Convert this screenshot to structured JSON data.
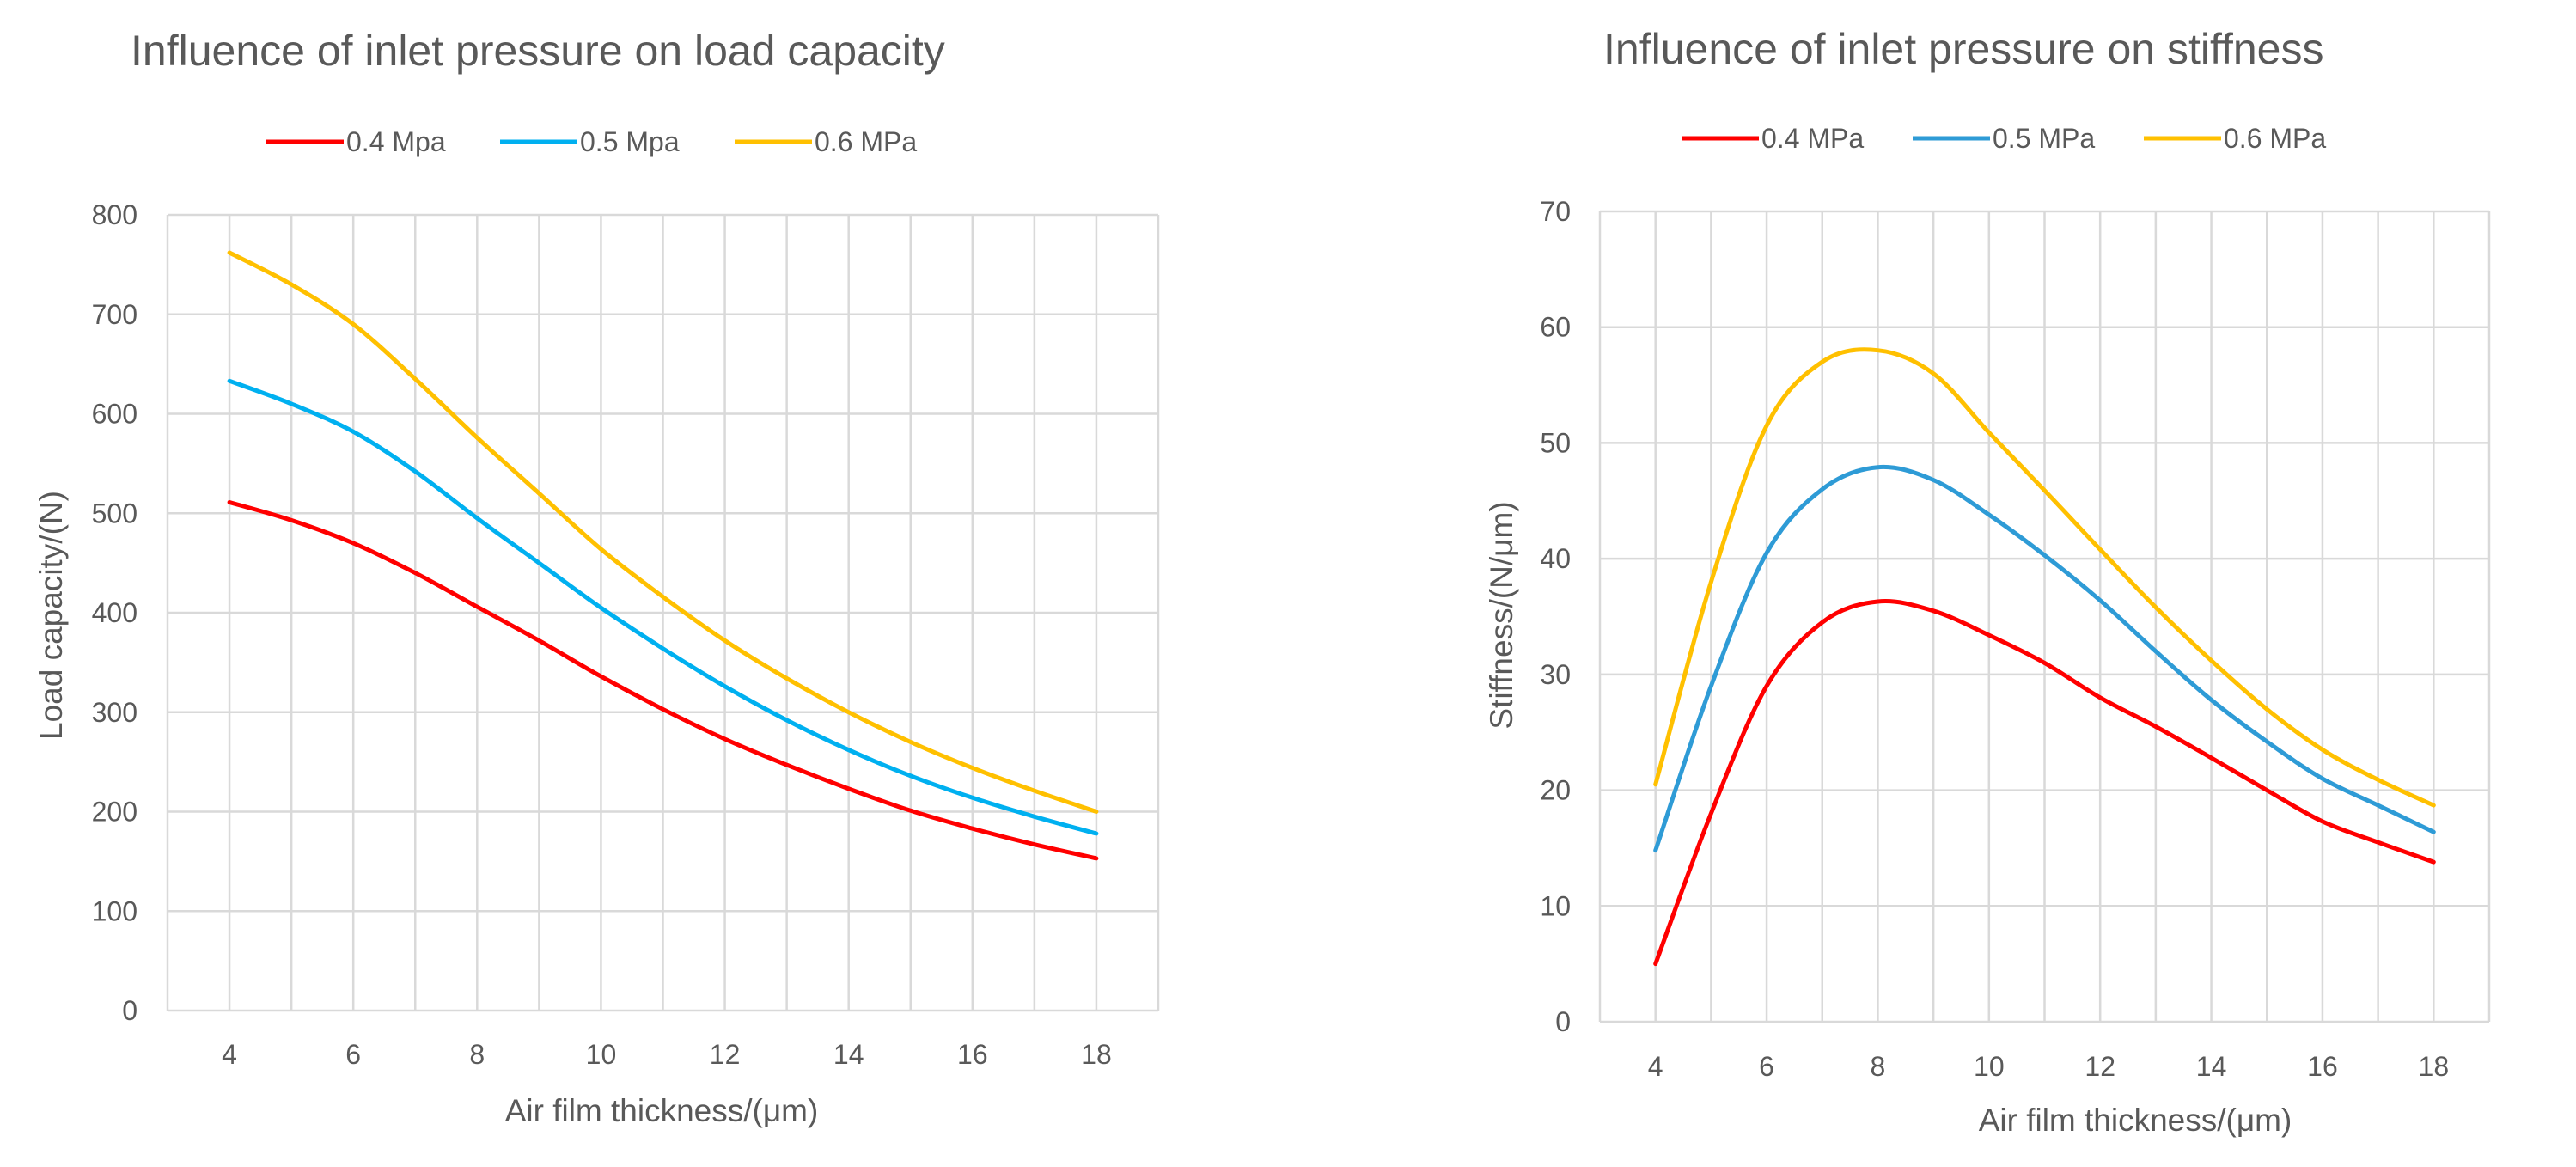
{
  "chart_data": [
    {
      "type": "line",
      "title": "Influence of inlet pressure on load capacity",
      "xlabel": "Air film thickness/(μm)",
      "ylabel": "Load capacity/(N)",
      "x": [
        4,
        5,
        6,
        7,
        8,
        9,
        10,
        11,
        12,
        13,
        14,
        15,
        16,
        17,
        18
      ],
      "xlim": [
        3,
        19
      ],
      "ylim": [
        0,
        800
      ],
      "xticks": [
        "4",
        "6",
        "8",
        "10",
        "12",
        "14",
        "16",
        "18"
      ],
      "yticks": [
        "0",
        "100",
        "200",
        "300",
        "400",
        "500",
        "600",
        "700",
        "800"
      ],
      "legend_position": "top",
      "series": [
        {
          "name": "0.4 Mpa",
          "color": "#ff0000",
          "values": [
            511,
            493,
            470,
            440,
            406,
            372,
            336,
            303,
            273,
            247,
            223,
            201,
            183,
            167,
            153
          ]
        },
        {
          "name": "0.5 Mpa",
          "color": "#00b0f0",
          "values": [
            633,
            610,
            582,
            542,
            495,
            450,
            405,
            364,
            326,
            292,
            262,
            236,
            214,
            195,
            178
          ]
        },
        {
          "name": "0.6 MPa",
          "color": "#ffc000",
          "values": [
            762,
            730,
            690,
            635,
            576,
            520,
            464,
            416,
            372,
            334,
            300,
            270,
            244,
            221,
            200
          ]
        }
      ]
    },
    {
      "type": "line",
      "title": "Influence of inlet pressure on stiffness",
      "xlabel": "Air film thickness/(μm)",
      "ylabel": "Stiffness/(N/μm)",
      "x": [
        4,
        5,
        6,
        7,
        8,
        9,
        10,
        11,
        12,
        13,
        14,
        15,
        16,
        17,
        18
      ],
      "xlim": [
        3,
        19
      ],
      "ylim": [
        0,
        70
      ],
      "xticks": [
        "4",
        "6",
        "8",
        "10",
        "12",
        "14",
        "16",
        "18"
      ],
      "yticks": [
        "0",
        "10",
        "20",
        "30",
        "40",
        "50",
        "60",
        "70"
      ],
      "legend_position": "top",
      "series": [
        {
          "name": "0.4 MPa",
          "color": "#ff0000",
          "values": [
            5,
            18,
            29,
            34.5,
            36.3,
            35.5,
            33.4,
            31,
            28,
            25.5,
            22.8,
            20,
            17.3,
            15.5,
            13.8
          ]
        },
        {
          "name": "0.5 MPa",
          "color": "#2e9bd6",
          "values": [
            14.8,
            29,
            40.5,
            46,
            47.9,
            46.8,
            43.8,
            40.3,
            36.4,
            32,
            27.8,
            24.2,
            21,
            18.7,
            16.4
          ]
        },
        {
          "name": "0.6 MPa",
          "color": "#ffc000",
          "values": [
            20.5,
            38,
            51.5,
            57,
            58,
            56,
            50.9,
            45.9,
            40.8,
            35.8,
            31.2,
            27,
            23.5,
            20.9,
            18.7
          ]
        }
      ]
    }
  ]
}
